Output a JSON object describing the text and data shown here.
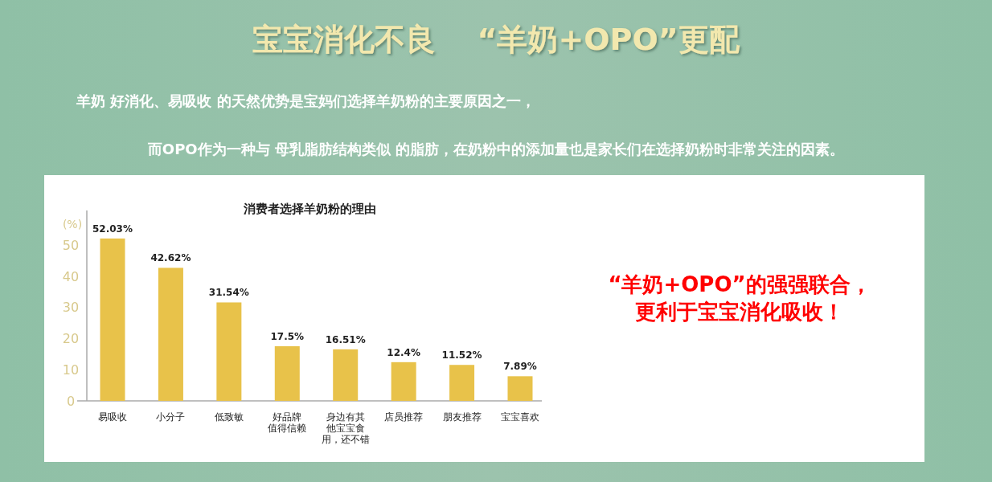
{
  "chart_data": {
    "type": "bar",
    "title": "消费者选择羊奶粉的理由",
    "ylabel": "(%)",
    "categories": [
      "易吸收",
      "小分子",
      "低致敏",
      "好品牌值得信赖",
      "身边有其他宝宝食用，还不错",
      "店员推荐",
      "朋友推荐",
      "宝宝喜欢"
    ],
    "values": [
      52.03,
      42.62,
      31.54,
      17.5,
      16.51,
      12.4,
      11.52,
      7.89
    ],
    "value_labels": [
      "52.03%",
      "42.62%",
      "31.54%",
      "17.5%",
      "16.51%",
      "12.4%",
      "11.52%",
      "7.89%"
    ],
    "color": "#e8c24a",
    "ylim": [
      0,
      61
    ],
    "yticks": [
      0,
      10,
      20,
      30,
      40,
      50
    ],
    "grid": false,
    "annotations": [
      "宝宝消化不良　 “羊奶+OPO”更配",
      "羊奶 好消化、易吸收 的天然优势是宝妈们选择羊奶粉的主要原因之一，",
      "而OPO作为一种与 母乳脂肪结构类似 的脂肪，在奶粉中的添加量也是家长们在选择奶粉时非常关注的因素。",
      "“羊奶+OPO”的强强联合，更利于宝宝消化吸收！"
    ]
  }
}
